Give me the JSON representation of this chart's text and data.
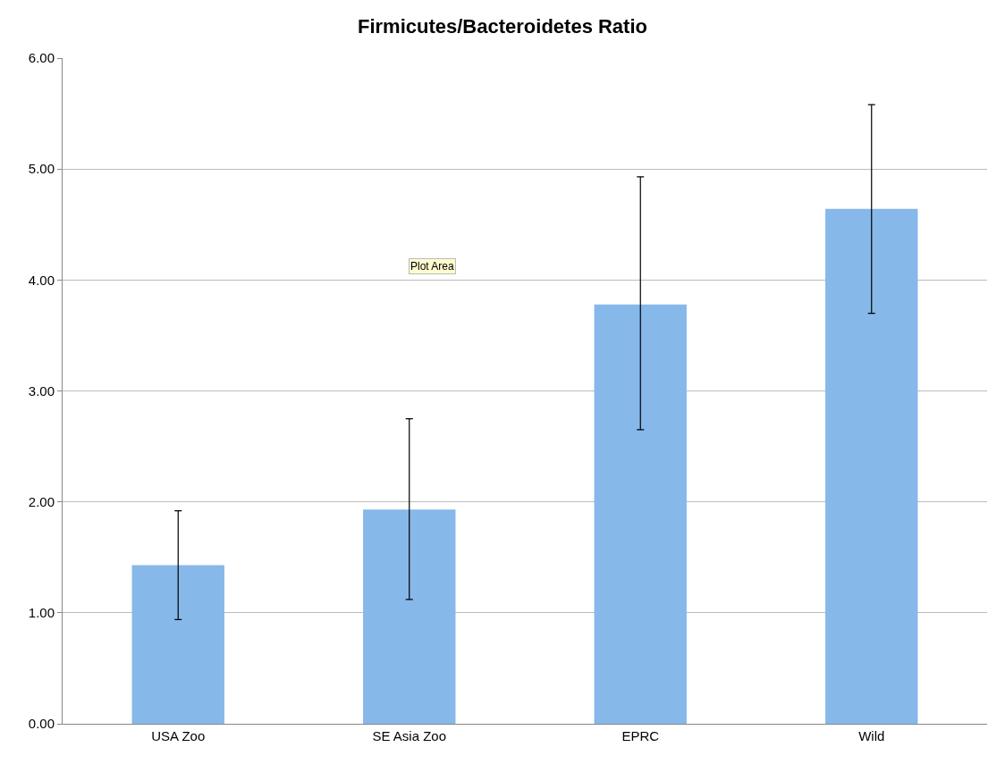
{
  "chart_data": {
    "type": "bar",
    "title": "Firmicutes/Bacteroidetes Ratio",
    "categories": [
      "USA Zoo",
      "SE Asia Zoo",
      "EPRC",
      "Wild"
    ],
    "values": [
      1.43,
      1.93,
      3.78,
      4.64
    ],
    "errors": [
      [
        0.94,
        1.92
      ],
      [
        1.12,
        2.75
      ],
      [
        2.65,
        4.93
      ],
      [
        3.7,
        5.58
      ]
    ],
    "color": "#86b8ea",
    "ylim": [
      0,
      6
    ],
    "yticks": [
      {
        "value": 0,
        "label": "0.00"
      },
      {
        "value": 1,
        "label": "1.00"
      },
      {
        "value": 2,
        "label": "2.00"
      },
      {
        "value": 3,
        "label": "3.00"
      },
      {
        "value": 4,
        "label": "4.00"
      },
      {
        "value": 5,
        "label": "5.00"
      },
      {
        "value": 6,
        "label": "6.00"
      }
    ],
    "grid": "y",
    "annotations": [
      "Plot Area"
    ]
  }
}
